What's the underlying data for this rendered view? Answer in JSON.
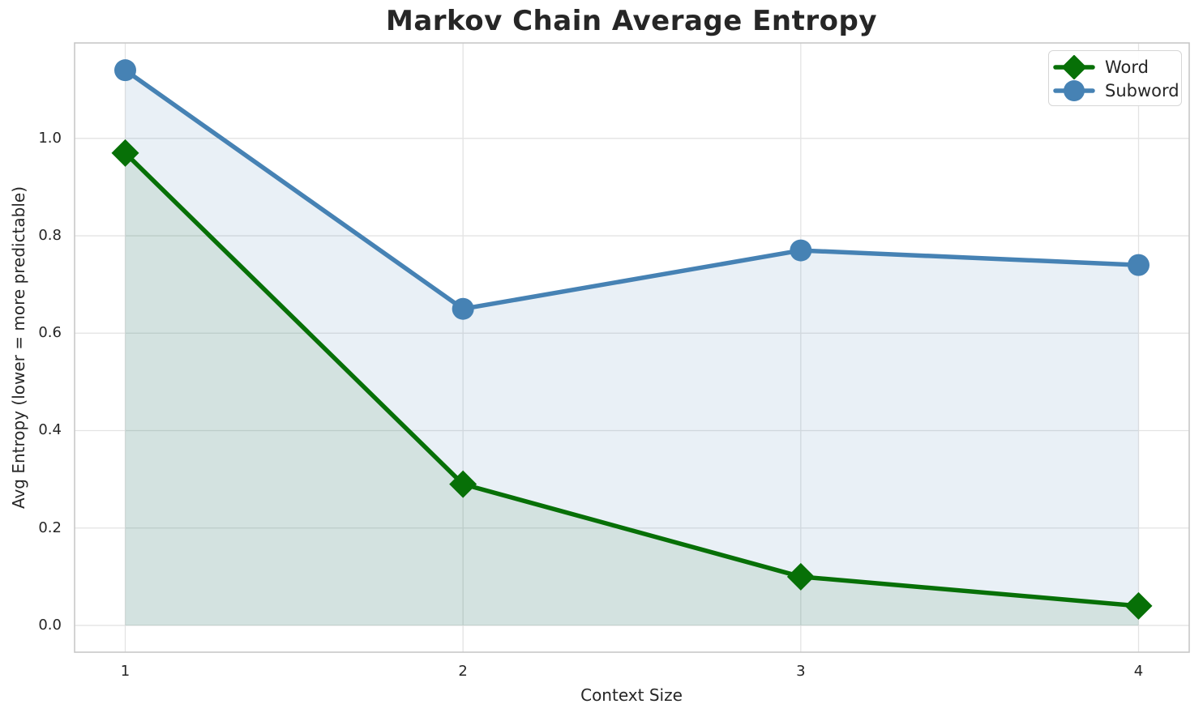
{
  "chart_data": {
    "type": "line",
    "title": "Markov Chain Average Entropy",
    "xlabel": "Context Size",
    "ylabel": "Avg Entropy (lower = more predictable)",
    "x": [
      1,
      2,
      3,
      4
    ],
    "x_tick_labels": [
      "1",
      "2",
      "3",
      "4"
    ],
    "y_tick_values": [
      0.0,
      0.2,
      0.4,
      0.6,
      0.8,
      1.0
    ],
    "y_tick_labels": [
      "0.0",
      "0.2",
      "0.4",
      "0.6",
      "0.8",
      "1.0"
    ],
    "xlim": [
      0.85,
      4.15
    ],
    "ylim": [
      -0.055,
      1.196
    ],
    "grid": true,
    "legend_position": "upper right",
    "series": [
      {
        "name": "Word",
        "marker": "diamond",
        "color": "#077007",
        "fill_color": "rgba(7,112,7,0.10)",
        "values": [
          0.97,
          0.29,
          0.1,
          0.04
        ]
      },
      {
        "name": "Subword",
        "marker": "circle",
        "color": "#4682b4",
        "fill_color": "rgba(70,130,180,0.12)",
        "values": [
          1.14,
          0.65,
          0.77,
          0.74
        ]
      }
    ],
    "style": {
      "background": "#ffffff",
      "grid_color": "#e3e3e3",
      "spine_color": "#c8c8c8",
      "text_color": "#262626"
    }
  }
}
